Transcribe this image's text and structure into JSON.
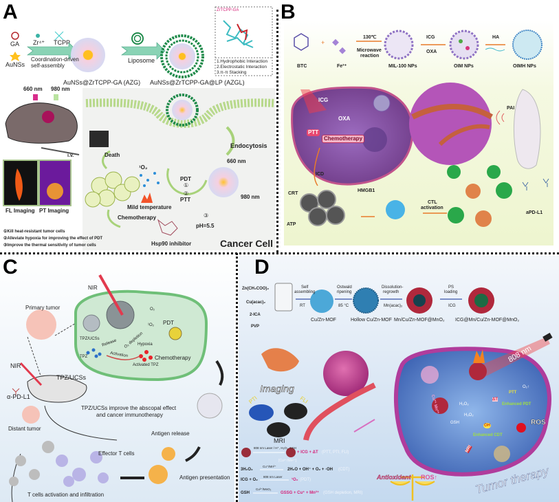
{
  "panel_a": {
    "letter": "A",
    "ga": "GA",
    "aunss": "AuNSs",
    "zr": "Zr⁴⁺",
    "tcpp": "TCPP",
    "coordination": "Coordination-driven",
    "self_assembly": "self-assembly",
    "liposome": "Liposome",
    "azg": "AuNSs@ZrTCPP-GA (AZG)",
    "azgl": "AuNSs@ZrTCPP-GA@LP (AZGL)",
    "inset_title": "ZrTCPP-GA",
    "interactions": [
      "1.Hydrophobic Interaction",
      "2.Electrostatic Interaction",
      "3.π-π Stacking"
    ],
    "laser_660": "660 nm",
    "laser_980": "980 nm",
    "iv": "i.v.",
    "fl_imaging": "FL Imaging",
    "pt_imaging": "PT Imaging",
    "endocytosis": "Endocytosis",
    "death": "Death",
    "singlet_oxygen": "¹O₂",
    "pdt": "PDT",
    "step1": "①",
    "step2": "②",
    "step3": "③",
    "ptt": "PTT",
    "cell_660": "660 nm",
    "cell_980": "980 nm",
    "mild_temperature": "Mild temperature",
    "chemotherapy": "Chemotherapy",
    "ph": "pH=5.5",
    "hsp90": "Hsp90 inhibitor",
    "cancer_cell": "Cancer Cell",
    "notes": [
      "①Kill heat-resistant tumor cells",
      "②Alleviate hypoxia for improving the effect of PDT",
      "③Improve the thermal sensitivity of tumor cells"
    ]
  },
  "panel_b": {
    "letter": "B",
    "btc": "BTC",
    "plus": "+",
    "fe": "Fe³⁺",
    "temp": "130℃",
    "microwave": "Microwave",
    "reaction": "reaction",
    "mil100": "MIL-100 NPs",
    "icg": "ICG",
    "oxa": "OXA",
    "oim": "OIM NPs",
    "ha": "HA",
    "oimh": "OIMH NPs",
    "cell_icg": "ICG",
    "cell_oxa": "OXA",
    "cell_ptt": "PTT",
    "cell_chemo": "Chemotherapy",
    "icd": "ICD",
    "crt": "CRT",
    "hmgb1": "HMGB1",
    "atp": "ATP",
    "ctl": "CTL",
    "activation": "activation",
    "pai": "PAI",
    "apdl1": "aPD-L1"
  },
  "panel_c": {
    "letter": "C",
    "nir_top": "NIR",
    "primary_tumor": "Primary tumor",
    "o2": "O₂",
    "singlet_o2": "¹O₂",
    "pdt": "PDT",
    "tpz_ucss_cell": "TPZ/UCSs",
    "release": "Release",
    "o2_depletion": "O₂ depletion",
    "hypoxia": "Hypoxia",
    "tpz": "TPZ",
    "activation": "Activation",
    "chemotherapy": "Chemotherapy",
    "activated_tpz": "Activated TPZ",
    "nir_mouse": "NIR",
    "tpz_ucss": "TPZ/UCSs",
    "apdl1": "α-PD-L1",
    "summary_1": "TPZ/UCSs improve the abscopal effect",
    "summary_2": "and cancer immunotherapy",
    "distant_tumor": "Distant tumor",
    "antigen_release": "Antigen release",
    "effector_t": "Effector T cells",
    "antigen_presentation": "Antigen presentation",
    "t_activation": "T cells activation and infiltration"
  },
  "panel_d": {
    "letter": "D",
    "reagents": [
      "Zn(CH₃COO)₂",
      "Cu(acac)₂",
      "2-ICA",
      "PVP"
    ],
    "step_self": [
      "Self",
      "assembling"
    ],
    "rt": "RT",
    "step_ostwald": [
      "Ostwald",
      "ripening"
    ],
    "temp": "85 °C",
    "step_dissolution": [
      "Dissolution-",
      "regrowth"
    ],
    "mn": "Mn(acac)₂",
    "step_ps": [
      "PS",
      "loading"
    ],
    "icg": "ICG",
    "products": [
      "Cu/Zn-MOF",
      "Hollow Cu/Zn-MOF",
      "Mn/Cu/Zn-MOF@MnO₂",
      "ICG@Mn/Cu/Zn-MOF@MnO₂"
    ],
    "imaging": "Imaging",
    "pti": "PTI",
    "fli": "FLI",
    "mri": "MRI",
    "laser": "808 nm",
    "cell_labels": {
      "ptt": "PTT",
      "dt": "ΔT",
      "h2o2_a": "H₂O₂",
      "h2o2_b": "H₂O₂",
      "gsh": "GSH",
      "oh": "OH",
      "enhanced_pdt": "Enhanced PDT",
      "enhanced_cdt": "Enhanced CDT",
      "ros": "ROS",
      "o2": "O₂↑",
      "ions": "Cu²⁺ Mn²⁺",
      "mri": "MRI"
    },
    "equations": [
      {
        "lhs": "",
        "cond": "808 nm Laser / H⁺, H₂O₂, GSH",
        "rhs": "+ ICG + ΔT",
        "note": "(PTT, PTI, FLI)",
        "sub": "[Cu²⁺/Mn²⁺]"
      },
      {
        "lhs": "3H₂O₂",
        "cond": "Cu⁺/Mn²⁺",
        "rhs": "2H₂O + OH⁻ + O₂ + ·OH",
        "note": "(CDT)"
      },
      {
        "lhs": "ICG + O₂",
        "cond": "808 nm Laser",
        "rhs": "¹O₂",
        "note": "(PDT)"
      },
      {
        "lhs": "GSH",
        "cond": "Cu²⁺/MnO₂",
        "rhs": "GSSG + Cu⁺ + Mn²⁺",
        "note": "(GSH depletion, MRI)"
      }
    ],
    "antioxidant": "Antioxidant",
    "ros_up": "ROS↑",
    "tumor_therapy": "Tumor therapy"
  },
  "colors": {
    "arrow_teal": "#5fc7a7",
    "liposome_green": "#1e8a4a",
    "membrane_green": "#b8d98c",
    "b_background": "#f2f7da",
    "orange_arrow": "#e87a2a",
    "cell_purple": "#7b3f8f",
    "c_green_cell": "#6fbf78",
    "d_background": "#d4e4f3",
    "d_cell_blue": "#4e7fc7",
    "d_cell_rim": "#b03c9c",
    "accent_pink": "#d6247a"
  }
}
